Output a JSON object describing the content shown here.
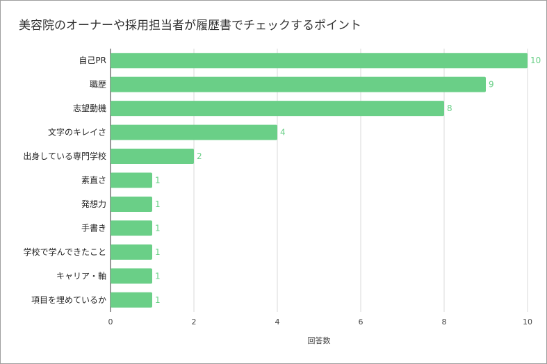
{
  "chart_data": {
    "type": "bar",
    "orientation": "horizontal",
    "title": "美容院のオーナーや採用担当者が履歴書でチェックするポイント",
    "xlabel": "回答数",
    "ylabel": "",
    "xlim": [
      0,
      10
    ],
    "xticks": [
      0,
      2,
      4,
      6,
      8,
      10
    ],
    "grid": true,
    "bar_color": "#6acf87",
    "categories": [
      "自己PR",
      "職歴",
      "志望動機",
      "文字のキレイさ",
      "出身している専門学校",
      "素直さ",
      "発想力",
      "手書き",
      "学校で学んできたこと",
      "キャリア・軸",
      "項目を埋めているか"
    ],
    "values": [
      10,
      9,
      8,
      4,
      2,
      1,
      1,
      1,
      1,
      1,
      1
    ]
  }
}
